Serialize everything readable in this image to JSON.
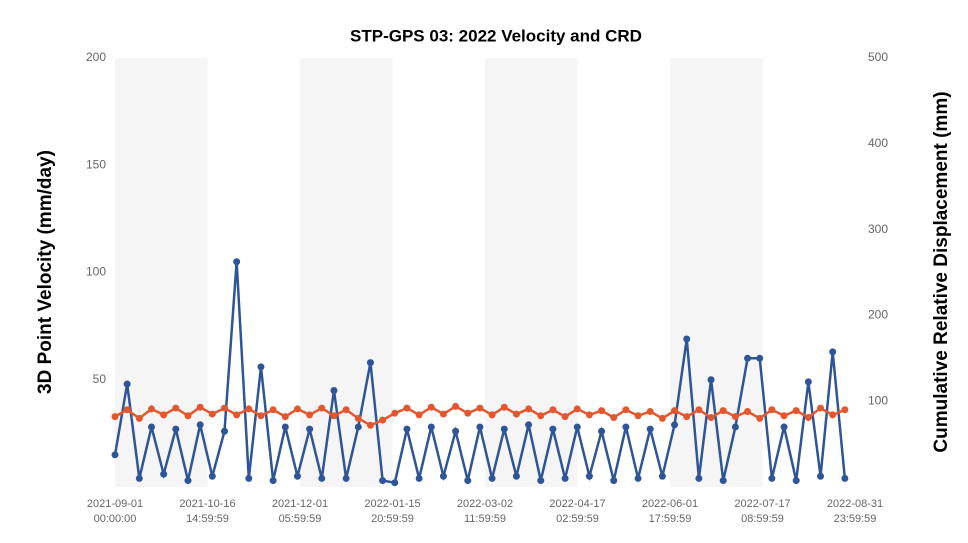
{
  "chart_data": {
    "type": "line",
    "title": "STP-GPS 03: 2022 Velocity and CRD",
    "y_label": "3D Point Velocity (mm/day)",
    "y2_label": "Cumulative Relative Displacement (mm)",
    "x": [
      "2021-09-01",
      "2021-09-07",
      "2021-09-13",
      "2021-09-19",
      "2021-09-25",
      "2021-10-01",
      "2021-10-07",
      "2021-10-13",
      "2021-10-19",
      "2021-10-25",
      "2021-10-31",
      "2021-11-06",
      "2021-11-12",
      "2021-11-18",
      "2021-11-24",
      "2021-11-30",
      "2021-12-06",
      "2021-12-12",
      "2021-12-18",
      "2021-12-24",
      "2021-12-30",
      "2022-01-05",
      "2022-01-11",
      "2022-01-17",
      "2022-01-23",
      "2022-01-29",
      "2022-02-04",
      "2022-02-10",
      "2022-02-16",
      "2022-02-22",
      "2022-02-28",
      "2022-03-06",
      "2022-03-12",
      "2022-03-18",
      "2022-03-24",
      "2022-03-30",
      "2022-04-05",
      "2022-04-11",
      "2022-04-17",
      "2022-04-23",
      "2022-04-29",
      "2022-05-05",
      "2022-05-11",
      "2022-05-17",
      "2022-05-23",
      "2022-05-29",
      "2022-06-04",
      "2022-06-10",
      "2022-06-16",
      "2022-06-22",
      "2022-06-28",
      "2022-07-04",
      "2022-07-10",
      "2022-07-16",
      "2022-07-22",
      "2022-07-28",
      "2022-08-03",
      "2022-08-09",
      "2022-08-15",
      "2022-08-21",
      "2022-08-27"
    ],
    "series": [
      {
        "name": "3D Point Velocity",
        "color": "#2e5597",
        "axis": "y",
        "values": [
          15,
          48,
          4,
          28,
          6,
          27,
          3,
          29,
          5,
          26,
          105,
          4,
          56,
          3,
          28,
          5,
          27,
          4,
          45,
          4,
          28,
          58,
          3,
          2,
          27,
          4,
          28,
          5,
          26,
          3,
          28,
          4,
          27,
          5,
          29,
          3,
          27,
          4,
          28,
          5,
          26,
          3,
          28,
          4,
          27,
          5,
          29,
          69,
          4,
          50,
          3,
          28,
          60,
          60,
          4,
          28,
          3,
          49,
          5,
          63,
          4
        ]
      },
      {
        "name": "Cumulative Relative Displacement",
        "color": "#e4572e",
        "axis": "y2",
        "values": [
          82,
          90,
          80,
          91,
          84,
          92,
          83,
          93,
          85,
          92,
          84,
          91,
          83,
          90,
          82,
          91,
          84,
          92,
          83,
          90,
          80,
          72,
          78,
          86,
          92,
          84,
          93,
          85,
          94,
          86,
          92,
          84,
          93,
          85,
          91,
          83,
          90,
          82,
          91,
          84,
          89,
          81,
          90,
          83,
          88,
          80,
          89,
          82,
          90,
          81,
          89,
          82,
          88,
          80,
          90,
          83,
          89,
          81,
          92,
          84,
          90
        ]
      }
    ],
    "xlim": [
      "2021-09-01 00:00:00",
      "2022-08-31 23:59:59"
    ],
    "xticks": [
      {
        "value": "2021-09-01 00:00:00",
        "label": "2021-09-01\n00:00:00"
      },
      {
        "value": "2021-10-16 14:59:59",
        "label": "2021-10-16\n14:59:59"
      },
      {
        "value": "2021-12-01 05:59:59",
        "label": "2021-12-01\n05:59:59"
      },
      {
        "value": "2022-01-15 20:59:59",
        "label": "2022-01-15\n20:59:59"
      },
      {
        "value": "2022-03-02 11:59:59",
        "label": "2022-03-02\n11:59:59"
      },
      {
        "value": "2022-04-17 02:59:59",
        "label": "2022-04-17\n02:59:59"
      },
      {
        "value": "2022-06-01 17:59:59",
        "label": "2022-06-01\n17:59:59"
      },
      {
        "value": "2022-07-17 08:59:59",
        "label": "2022-07-17\n08:59:59"
      },
      {
        "value": "2022-08-31 23:59:59",
        "label": "2022-08-31\n23:59:59"
      }
    ],
    "ylim": [
      0,
      200
    ],
    "yticks": [
      50,
      100,
      150,
      200
    ],
    "y2lim": [
      0,
      500
    ],
    "y2ticks": [
      100,
      200,
      300,
      400,
      500
    ],
    "alternating_bands": true
  }
}
